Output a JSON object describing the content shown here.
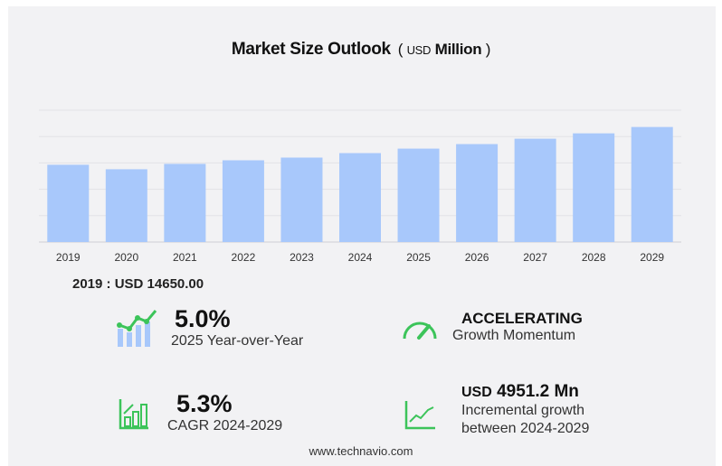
{
  "chart_data": {
    "type": "bar",
    "title": "Market Size Outlook",
    "unit_prefix": "USD",
    "unit": "Million",
    "categories": [
      "2019",
      "2020",
      "2021",
      "2022",
      "2023",
      "2024",
      "2025",
      "2026",
      "2027",
      "2028",
      "2029"
    ],
    "values": [
      14650,
      13800,
      14820,
      15500,
      16010,
      16860,
      17710,
      18570,
      19590,
      20610,
      21810
    ],
    "xlabel": "",
    "ylabel": "",
    "ylim": [
      0,
      25000
    ],
    "grid": true,
    "bar_color": "#a8c8fb"
  },
  "base_value": "2019 : USD  14650.00",
  "stats": {
    "yoy": {
      "value": "5.0%",
      "label": "2025 Year-over-Year"
    },
    "momentum": {
      "value": "ACCELERATING",
      "label": "Growth Momentum"
    },
    "cagr": {
      "value": "5.3%",
      "label": "CAGR 2024-2029"
    },
    "incremental": {
      "prefix": "USD",
      "value": "4951.2 Mn",
      "label1": "Incremental growth",
      "label2": "between 2024-2029"
    }
  },
  "footer": "www.technavio.com",
  "colors": {
    "accent_green": "#3cc45a",
    "bar": "#a8c8fb"
  }
}
